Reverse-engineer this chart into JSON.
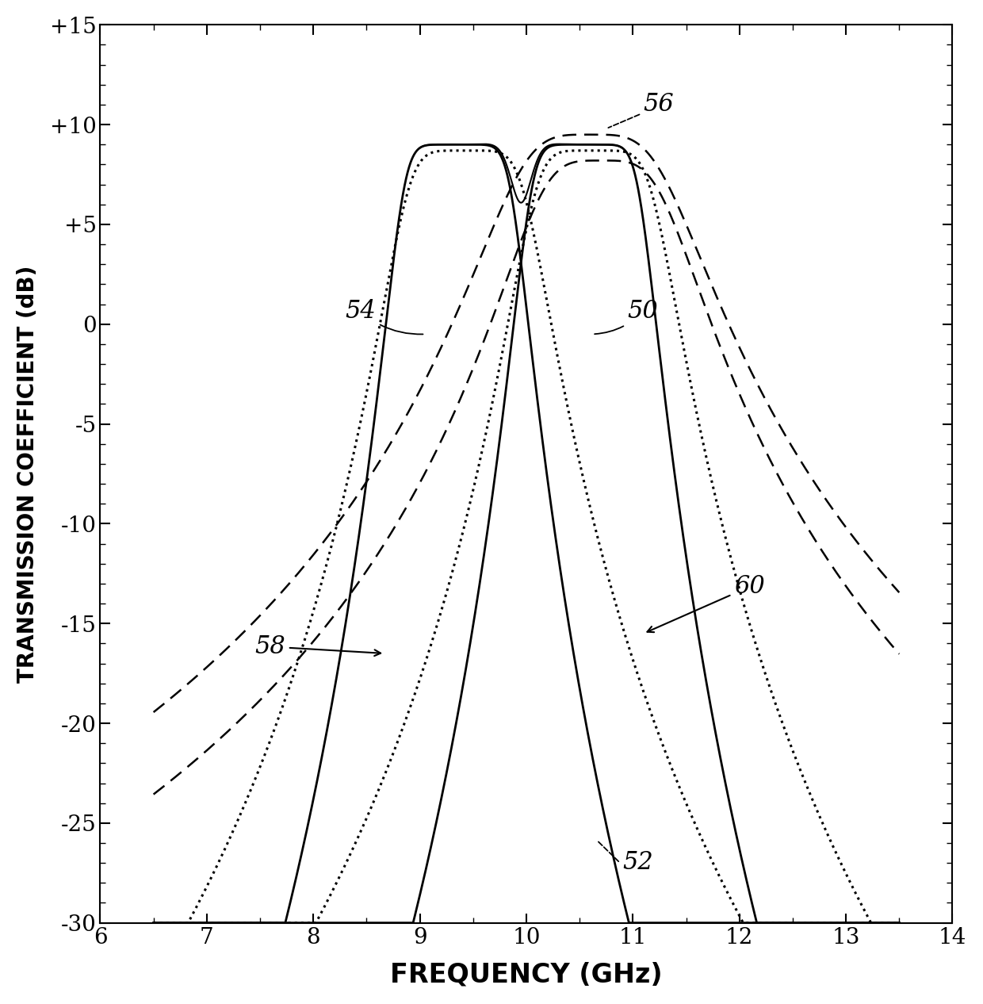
{
  "xlim": [
    6,
    14
  ],
  "ylim": [
    -30,
    15
  ],
  "xticks": [
    6,
    7,
    8,
    9,
    10,
    11,
    12,
    13,
    14
  ],
  "yticks": [
    -30,
    -25,
    -20,
    -15,
    "-10",
    "-5",
    "0",
    "+5",
    "+10",
    "+15"
  ],
  "ytick_labels": [
    "-30",
    "-25",
    "-20",
    "-15",
    "-10",
    "-5",
    "0",
    "+5",
    "+10",
    "+15"
  ],
  "xlabel": "FREQUENCY (GHz)",
  "ylabel": "TRANSMISSION COEFFICIENT (dB)",
  "background_color": "#ffffff",
  "f1": 9.35,
  "f2": 10.55,
  "peak_db": 9.0,
  "bw_solid": 1.05,
  "bw_dotted": 1.18,
  "bw_dashed_56": 1.55,
  "bw_dashed_52": 1.35,
  "skirt_n_solid": 8,
  "skirt_n_dotted": 6
}
